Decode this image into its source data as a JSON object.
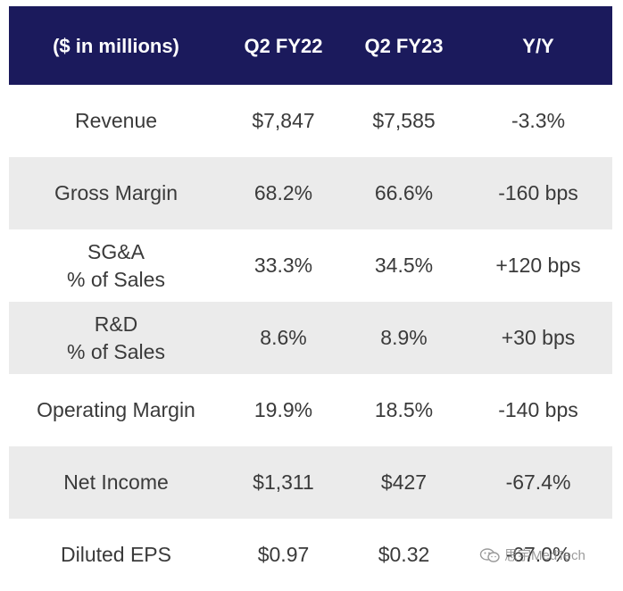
{
  "header": {
    "col0": "($ in millions)",
    "col1": "Q2 FY22",
    "col2": "Q2 FY23",
    "col3": "Y/Y"
  },
  "rows": [
    {
      "label_lines": [
        "Revenue"
      ],
      "q2fy22": "$7,847",
      "q2fy23": "$7,585",
      "yy": "-3.3%"
    },
    {
      "label_lines": [
        "Gross Margin"
      ],
      "q2fy22": "68.2%",
      "q2fy23": "66.6%",
      "yy": "-160 bps"
    },
    {
      "label_lines": [
        "SG&A",
        "% of Sales"
      ],
      "q2fy22": "33.3%",
      "q2fy23": "34.5%",
      "yy": "+120 bps"
    },
    {
      "label_lines": [
        "R&D",
        "% of Sales"
      ],
      "q2fy22": "8.6%",
      "q2fy23": "8.9%",
      "yy": "+30 bps"
    },
    {
      "label_lines": [
        "Operating Margin"
      ],
      "q2fy22": "19.9%",
      "q2fy23": "18.5%",
      "yy": "-140 bps"
    },
    {
      "label_lines": [
        "Net Income"
      ],
      "q2fy22": "$1,311",
      "q2fy23": "$427",
      "yy": "-67.4%"
    },
    {
      "label_lines": [
        "Diluted EPS"
      ],
      "q2fy22": "$0.97",
      "q2fy23": "$0.32",
      "yy": "-67.0%"
    }
  ],
  "watermark": {
    "text": "思宇MedTech",
    "icon": "wechat-icon"
  },
  "colors": {
    "header_bg": "#1b1a5c",
    "alt_row_bg": "#ebebeb"
  }
}
